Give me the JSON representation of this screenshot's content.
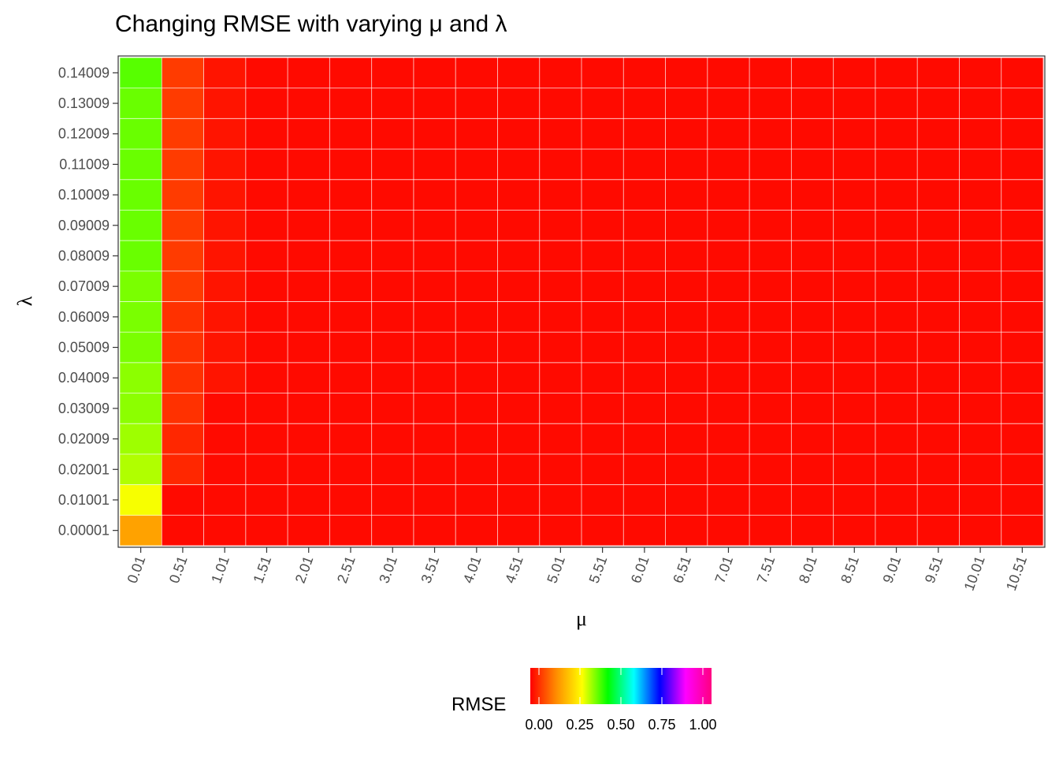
{
  "chart_data": {
    "type": "heatmap",
    "title": "Changing RMSE with varying μ and λ",
    "xlabel": "μ",
    "ylabel": "λ",
    "x_categories": [
      "0.01",
      "0.51",
      "1.01",
      "1.51",
      "2.01",
      "2.51",
      "3.01",
      "3.51",
      "4.01",
      "4.51",
      "5.01",
      "5.51",
      "6.01",
      "6.51",
      "7.01",
      "7.51",
      "8.01",
      "8.51",
      "9.01",
      "9.51",
      "10.01",
      "10.51"
    ],
    "y_categories": [
      "0.00001",
      "0.01001",
      "0.02001",
      "0.02009",
      "0.03009",
      "0.04009",
      "0.05009",
      "0.06009",
      "0.07009",
      "0.08009",
      "0.09009",
      "0.10009",
      "0.11009",
      "0.12009",
      "0.13009",
      "0.14009"
    ],
    "values_by_y": [
      [
        0.17,
        0.01,
        0.01,
        0.01,
        0.01,
        0.01,
        0.01,
        0.01,
        0.01,
        0.01,
        0.01,
        0.01,
        0.01,
        0.01,
        0.01,
        0.01,
        0.01,
        0.01,
        0.01,
        0.01,
        0.01,
        0.01
      ],
      [
        0.29,
        0.01,
        0.01,
        0.01,
        0.01,
        0.01,
        0.01,
        0.01,
        0.01,
        0.01,
        0.01,
        0.01,
        0.01,
        0.01,
        0.01,
        0.01,
        0.01,
        0.01,
        0.01,
        0.01,
        0.01,
        0.01
      ],
      [
        0.33,
        0.04,
        0.01,
        0.01,
        0.01,
        0.01,
        0.01,
        0.01,
        0.01,
        0.01,
        0.01,
        0.01,
        0.01,
        0.01,
        0.01,
        0.01,
        0.01,
        0.01,
        0.01,
        0.01,
        0.01,
        0.01
      ],
      [
        0.34,
        0.04,
        0.01,
        0.01,
        0.01,
        0.01,
        0.01,
        0.01,
        0.01,
        0.01,
        0.01,
        0.01,
        0.01,
        0.01,
        0.01,
        0.01,
        0.01,
        0.01,
        0.01,
        0.01,
        0.01,
        0.01
      ],
      [
        0.35,
        0.05,
        0.01,
        0.01,
        0.01,
        0.01,
        0.01,
        0.01,
        0.01,
        0.01,
        0.01,
        0.01,
        0.01,
        0.01,
        0.01,
        0.01,
        0.01,
        0.01,
        0.01,
        0.01,
        0.01,
        0.01
      ],
      [
        0.35,
        0.05,
        0.02,
        0.01,
        0.01,
        0.01,
        0.01,
        0.01,
        0.01,
        0.01,
        0.01,
        0.01,
        0.01,
        0.01,
        0.01,
        0.01,
        0.01,
        0.01,
        0.01,
        0.01,
        0.01,
        0.01
      ],
      [
        0.36,
        0.05,
        0.02,
        0.01,
        0.01,
        0.01,
        0.01,
        0.01,
        0.01,
        0.01,
        0.01,
        0.01,
        0.01,
        0.01,
        0.01,
        0.01,
        0.01,
        0.01,
        0.01,
        0.01,
        0.01,
        0.01
      ],
      [
        0.36,
        0.05,
        0.02,
        0.01,
        0.01,
        0.01,
        0.01,
        0.01,
        0.01,
        0.01,
        0.01,
        0.01,
        0.01,
        0.01,
        0.01,
        0.01,
        0.01,
        0.01,
        0.01,
        0.01,
        0.01,
        0.01
      ],
      [
        0.36,
        0.06,
        0.02,
        0.01,
        0.01,
        0.01,
        0.01,
        0.01,
        0.01,
        0.01,
        0.01,
        0.01,
        0.01,
        0.01,
        0.01,
        0.01,
        0.01,
        0.01,
        0.01,
        0.01,
        0.01,
        0.01
      ],
      [
        0.37,
        0.06,
        0.02,
        0.01,
        0.01,
        0.01,
        0.01,
        0.01,
        0.01,
        0.01,
        0.01,
        0.01,
        0.01,
        0.01,
        0.01,
        0.01,
        0.01,
        0.01,
        0.01,
        0.01,
        0.01,
        0.01
      ],
      [
        0.37,
        0.06,
        0.02,
        0.01,
        0.01,
        0.01,
        0.01,
        0.01,
        0.01,
        0.01,
        0.01,
        0.01,
        0.01,
        0.01,
        0.01,
        0.01,
        0.01,
        0.01,
        0.01,
        0.01,
        0.01,
        0.01
      ],
      [
        0.37,
        0.06,
        0.02,
        0.01,
        0.01,
        0.01,
        0.01,
        0.01,
        0.01,
        0.01,
        0.01,
        0.01,
        0.01,
        0.01,
        0.01,
        0.01,
        0.01,
        0.01,
        0.01,
        0.01,
        0.01,
        0.01
      ],
      [
        0.37,
        0.06,
        0.02,
        0.01,
        0.01,
        0.01,
        0.01,
        0.01,
        0.01,
        0.01,
        0.01,
        0.01,
        0.01,
        0.01,
        0.01,
        0.01,
        0.01,
        0.01,
        0.01,
        0.01,
        0.01,
        0.01
      ],
      [
        0.37,
        0.06,
        0.02,
        0.01,
        0.01,
        0.01,
        0.01,
        0.01,
        0.01,
        0.01,
        0.01,
        0.01,
        0.01,
        0.01,
        0.01,
        0.01,
        0.01,
        0.01,
        0.01,
        0.01,
        0.01,
        0.01
      ],
      [
        0.37,
        0.06,
        0.02,
        0.01,
        0.01,
        0.01,
        0.01,
        0.01,
        0.01,
        0.01,
        0.01,
        0.01,
        0.01,
        0.01,
        0.01,
        0.01,
        0.01,
        0.01,
        0.01,
        0.01,
        0.01,
        0.01
      ],
      [
        0.38,
        0.06,
        0.02,
        0.01,
        0.01,
        0.01,
        0.01,
        0.01,
        0.01,
        0.01,
        0.01,
        0.01,
        0.01,
        0.01,
        0.01,
        0.01,
        0.01,
        0.01,
        0.01,
        0.01,
        0.01,
        0.01
      ]
    ],
    "legend": {
      "title": "RMSE",
      "ticks": [
        "0.00",
        "0.25",
        "0.50",
        "0.75",
        "1.00"
      ],
      "tick_values": [
        0,
        0.25,
        0.5,
        0.75,
        1.0
      ],
      "range": [
        0,
        1
      ],
      "position": "bottom",
      "colors": [
        "#ff0000",
        "#ff8c00",
        "#ffff00",
        "#00ff00",
        "#00ffff",
        "#0000ff",
        "#ff00ff",
        "#ff0080"
      ]
    },
    "grid": true,
    "panel_border": true
  }
}
